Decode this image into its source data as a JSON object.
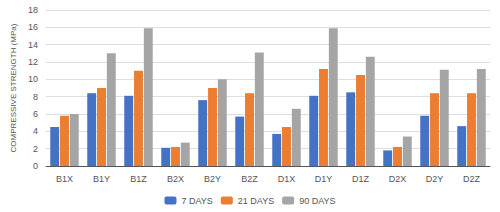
{
  "chart_data": {
    "type": "bar",
    "categories": [
      "B1X",
      "B1Y",
      "B1Z",
      "B2X",
      "B2Y",
      "B2Z",
      "D1X",
      "D1Y",
      "D1Z",
      "D2X",
      "D2Y",
      "D2Z"
    ],
    "series": [
      {
        "name": "7 DAYS",
        "color": "#4472c4",
        "values": [
          4.5,
          8.4,
          8.1,
          2.1,
          7.6,
          5.7,
          3.7,
          8.1,
          8.5,
          1.8,
          5.8,
          4.6
        ]
      },
      {
        "name": "21 DAYS",
        "color": "#ed7d31",
        "values": [
          5.8,
          9.0,
          11.0,
          2.2,
          9.0,
          8.4,
          4.5,
          11.2,
          10.5,
          2.2,
          8.4,
          8.4
        ]
      },
      {
        "name": "90 DAYS",
        "color": "#a5a5a5",
        "values": [
          6.0,
          13.0,
          15.9,
          2.7,
          10.0,
          13.1,
          6.6,
          15.9,
          12.6,
          3.4,
          11.1,
          11.2
        ]
      }
    ],
    "ylabel": "COMPRESSIVE STRENGTH (MPa)",
    "ylim": [
      0,
      18
    ],
    "yticks": [
      0,
      2,
      4,
      6,
      8,
      10,
      12,
      14,
      16,
      18
    ],
    "grid": true,
    "legend": "bottom"
  }
}
